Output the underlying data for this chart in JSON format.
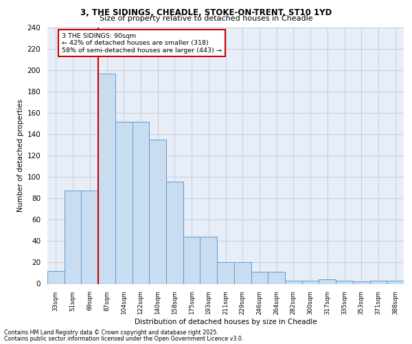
{
  "title1": "3, THE SIDINGS, CHEADLE, STOKE-ON-TRENT, ST10 1YD",
  "title2": "Size of property relative to detached houses in Cheadle",
  "xlabel": "Distribution of detached houses by size in Cheadle",
  "ylabel": "Number of detached properties",
  "categories": [
    "33sqm",
    "51sqm",
    "69sqm",
    "87sqm",
    "104sqm",
    "122sqm",
    "140sqm",
    "158sqm",
    "175sqm",
    "193sqm",
    "211sqm",
    "229sqm",
    "246sqm",
    "264sqm",
    "282sqm",
    "300sqm",
    "317sqm",
    "335sqm",
    "353sqm",
    "371sqm",
    "388sqm"
  ],
  "values": [
    12,
    87,
    87,
    197,
    152,
    152,
    135,
    96,
    44,
    44,
    20,
    20,
    11,
    11,
    3,
    3,
    4,
    3,
    2,
    3,
    3
  ],
  "bar_color": "#c9ddf0",
  "bar_edge_color": "#5b9bd5",
  "grid_color": "#c0c8d8",
  "bg_color": "#e8eef8",
  "annotation_text": "3 THE SIDINGS: 90sqm\n← 42% of detached houses are smaller (318)\n58% of semi-detached houses are larger (443) →",
  "vline_x": 2.5,
  "annotation_box_color": "#ffffff",
  "annotation_edge_color": "#cc0000",
  "vline_color": "#cc0000",
  "footer1": "Contains HM Land Registry data © Crown copyright and database right 2025.",
  "footer2": "Contains public sector information licensed under the Open Government Licence v3.0.",
  "ylim": [
    0,
    240
  ],
  "yticks": [
    0,
    20,
    40,
    60,
    80,
    100,
    120,
    140,
    160,
    180,
    200,
    220,
    240
  ]
}
